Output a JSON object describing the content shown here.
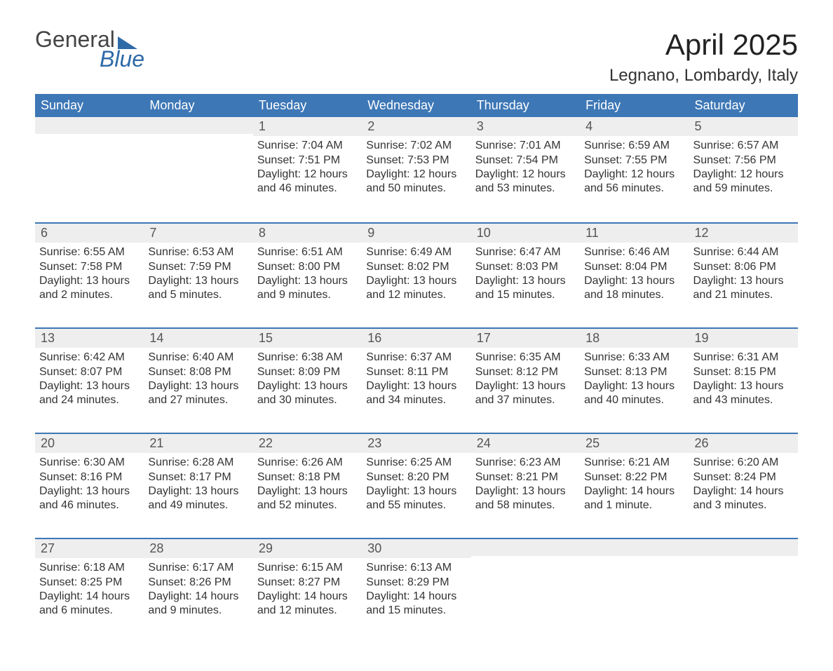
{
  "logo": {
    "word1": "General",
    "word2": "Blue"
  },
  "title": "April 2025",
  "subtitle": "Legnano, Lombardy, Italy",
  "colors": {
    "header_bg": "#3d77b6",
    "header_text": "#ffffff",
    "week_border": "#3d77b6",
    "daynum_bg": "#eeeeee",
    "body_text": "#333333",
    "page_bg": "#ffffff",
    "logo_blue": "#2e6aa8",
    "logo_gray": "#444444"
  },
  "day_headers": [
    "Sunday",
    "Monday",
    "Tuesday",
    "Wednesday",
    "Thursday",
    "Friday",
    "Saturday"
  ],
  "weeks": [
    [
      null,
      null,
      {
        "n": "1",
        "sr": "Sunrise: 7:04 AM",
        "ss": "Sunset: 7:51 PM",
        "d1": "Daylight: 12 hours",
        "d2": "and 46 minutes."
      },
      {
        "n": "2",
        "sr": "Sunrise: 7:02 AM",
        "ss": "Sunset: 7:53 PM",
        "d1": "Daylight: 12 hours",
        "d2": "and 50 minutes."
      },
      {
        "n": "3",
        "sr": "Sunrise: 7:01 AM",
        "ss": "Sunset: 7:54 PM",
        "d1": "Daylight: 12 hours",
        "d2": "and 53 minutes."
      },
      {
        "n": "4",
        "sr": "Sunrise: 6:59 AM",
        "ss": "Sunset: 7:55 PM",
        "d1": "Daylight: 12 hours",
        "d2": "and 56 minutes."
      },
      {
        "n": "5",
        "sr": "Sunrise: 6:57 AM",
        "ss": "Sunset: 7:56 PM",
        "d1": "Daylight: 12 hours",
        "d2": "and 59 minutes."
      }
    ],
    [
      {
        "n": "6",
        "sr": "Sunrise: 6:55 AM",
        "ss": "Sunset: 7:58 PM",
        "d1": "Daylight: 13 hours",
        "d2": "and 2 minutes."
      },
      {
        "n": "7",
        "sr": "Sunrise: 6:53 AM",
        "ss": "Sunset: 7:59 PM",
        "d1": "Daylight: 13 hours",
        "d2": "and 5 minutes."
      },
      {
        "n": "8",
        "sr": "Sunrise: 6:51 AM",
        "ss": "Sunset: 8:00 PM",
        "d1": "Daylight: 13 hours",
        "d2": "and 9 minutes."
      },
      {
        "n": "9",
        "sr": "Sunrise: 6:49 AM",
        "ss": "Sunset: 8:02 PM",
        "d1": "Daylight: 13 hours",
        "d2": "and 12 minutes."
      },
      {
        "n": "10",
        "sr": "Sunrise: 6:47 AM",
        "ss": "Sunset: 8:03 PM",
        "d1": "Daylight: 13 hours",
        "d2": "and 15 minutes."
      },
      {
        "n": "11",
        "sr": "Sunrise: 6:46 AM",
        "ss": "Sunset: 8:04 PM",
        "d1": "Daylight: 13 hours",
        "d2": "and 18 minutes."
      },
      {
        "n": "12",
        "sr": "Sunrise: 6:44 AM",
        "ss": "Sunset: 8:06 PM",
        "d1": "Daylight: 13 hours",
        "d2": "and 21 minutes."
      }
    ],
    [
      {
        "n": "13",
        "sr": "Sunrise: 6:42 AM",
        "ss": "Sunset: 8:07 PM",
        "d1": "Daylight: 13 hours",
        "d2": "and 24 minutes."
      },
      {
        "n": "14",
        "sr": "Sunrise: 6:40 AM",
        "ss": "Sunset: 8:08 PM",
        "d1": "Daylight: 13 hours",
        "d2": "and 27 minutes."
      },
      {
        "n": "15",
        "sr": "Sunrise: 6:38 AM",
        "ss": "Sunset: 8:09 PM",
        "d1": "Daylight: 13 hours",
        "d2": "and 30 minutes."
      },
      {
        "n": "16",
        "sr": "Sunrise: 6:37 AM",
        "ss": "Sunset: 8:11 PM",
        "d1": "Daylight: 13 hours",
        "d2": "and 34 minutes."
      },
      {
        "n": "17",
        "sr": "Sunrise: 6:35 AM",
        "ss": "Sunset: 8:12 PM",
        "d1": "Daylight: 13 hours",
        "d2": "and 37 minutes."
      },
      {
        "n": "18",
        "sr": "Sunrise: 6:33 AM",
        "ss": "Sunset: 8:13 PM",
        "d1": "Daylight: 13 hours",
        "d2": "and 40 minutes."
      },
      {
        "n": "19",
        "sr": "Sunrise: 6:31 AM",
        "ss": "Sunset: 8:15 PM",
        "d1": "Daylight: 13 hours",
        "d2": "and 43 minutes."
      }
    ],
    [
      {
        "n": "20",
        "sr": "Sunrise: 6:30 AM",
        "ss": "Sunset: 8:16 PM",
        "d1": "Daylight: 13 hours",
        "d2": "and 46 minutes."
      },
      {
        "n": "21",
        "sr": "Sunrise: 6:28 AM",
        "ss": "Sunset: 8:17 PM",
        "d1": "Daylight: 13 hours",
        "d2": "and 49 minutes."
      },
      {
        "n": "22",
        "sr": "Sunrise: 6:26 AM",
        "ss": "Sunset: 8:18 PM",
        "d1": "Daylight: 13 hours",
        "d2": "and 52 minutes."
      },
      {
        "n": "23",
        "sr": "Sunrise: 6:25 AM",
        "ss": "Sunset: 8:20 PM",
        "d1": "Daylight: 13 hours",
        "d2": "and 55 minutes."
      },
      {
        "n": "24",
        "sr": "Sunrise: 6:23 AM",
        "ss": "Sunset: 8:21 PM",
        "d1": "Daylight: 13 hours",
        "d2": "and 58 minutes."
      },
      {
        "n": "25",
        "sr": "Sunrise: 6:21 AM",
        "ss": "Sunset: 8:22 PM",
        "d1": "Daylight: 14 hours",
        "d2": "and 1 minute."
      },
      {
        "n": "26",
        "sr": "Sunrise: 6:20 AM",
        "ss": "Sunset: 8:24 PM",
        "d1": "Daylight: 14 hours",
        "d2": "and 3 minutes."
      }
    ],
    [
      {
        "n": "27",
        "sr": "Sunrise: 6:18 AM",
        "ss": "Sunset: 8:25 PM",
        "d1": "Daylight: 14 hours",
        "d2": "and 6 minutes."
      },
      {
        "n": "28",
        "sr": "Sunrise: 6:17 AM",
        "ss": "Sunset: 8:26 PM",
        "d1": "Daylight: 14 hours",
        "d2": "and 9 minutes."
      },
      {
        "n": "29",
        "sr": "Sunrise: 6:15 AM",
        "ss": "Sunset: 8:27 PM",
        "d1": "Daylight: 14 hours",
        "d2": "and 12 minutes."
      },
      {
        "n": "30",
        "sr": "Sunrise: 6:13 AM",
        "ss": "Sunset: 8:29 PM",
        "d1": "Daylight: 14 hours",
        "d2": "and 15 minutes."
      },
      null,
      null,
      null
    ]
  ]
}
